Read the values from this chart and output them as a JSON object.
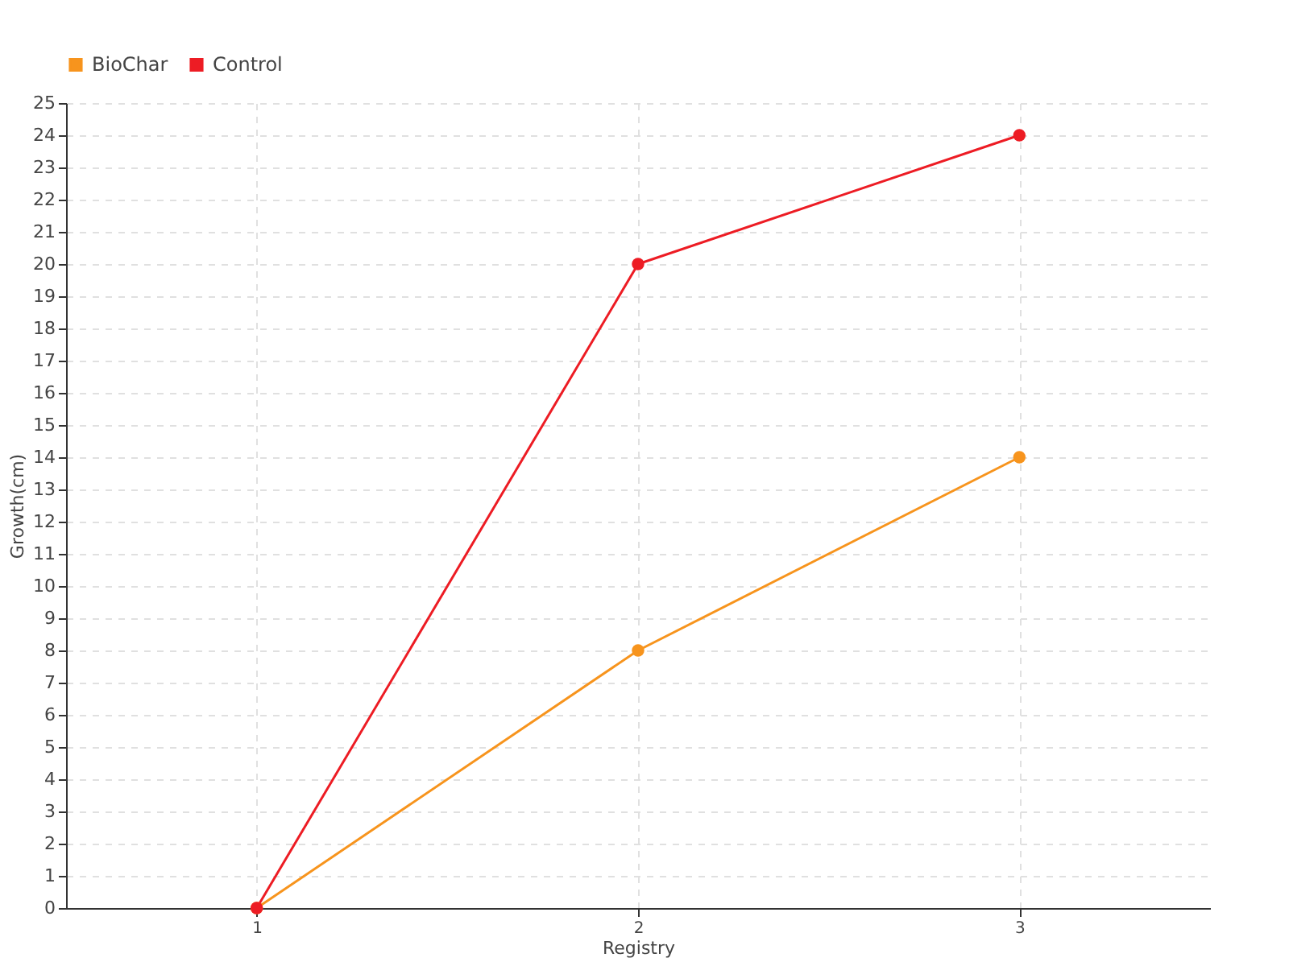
{
  "chart_data": {
    "type": "line",
    "xlabel": "Registry",
    "ylabel": "Growth(cm)",
    "categories": [
      "1",
      "2",
      "3"
    ],
    "series": [
      {
        "name": "BioChar",
        "color": "#f7941d",
        "values": [
          0,
          8,
          14
        ]
      },
      {
        "name": "Control",
        "color": "#ed1c24",
        "values": [
          0,
          20,
          24
        ]
      }
    ],
    "ylim": [
      0,
      25
    ],
    "yticks": [
      0,
      1,
      2,
      3,
      4,
      5,
      6,
      7,
      8,
      9,
      10,
      11,
      12,
      13,
      14,
      15,
      16,
      17,
      18,
      19,
      20,
      21,
      22,
      23,
      24,
      25
    ],
    "grid": true,
    "legend": "top left",
    "marker": "circle"
  }
}
